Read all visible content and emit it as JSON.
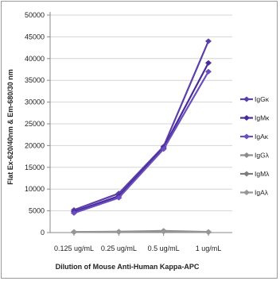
{
  "chart_data": {
    "type": "line",
    "xlabel": "Dilution of Mouse Anti-Human Kappa-APC",
    "ylabel": "Flat Ex-620/40nm & Em-680/30 nm",
    "categories": [
      "0.125 ug/mL",
      "0.25 ug/mL",
      "0.5 ug/mL",
      "1 ug/mL"
    ],
    "ylim": [
      0,
      50000
    ],
    "yticks": [
      0,
      5000,
      10000,
      15000,
      20000,
      25000,
      30000,
      35000,
      40000,
      45000,
      50000
    ],
    "grid": true,
    "legend_position": "right",
    "series": [
      {
        "name": "IgGκ",
        "color": "#5b3fa8",
        "values": [
          5200,
          9000,
          19800,
          44000
        ]
      },
      {
        "name": "IgMκ",
        "color": "#4a2a9a",
        "values": [
          4800,
          8400,
          19500,
          39000
        ]
      },
      {
        "name": "IgAκ",
        "color": "#6a4dbf",
        "values": [
          4500,
          8000,
          19200,
          37000
        ]
      },
      {
        "name": "IgGλ",
        "color": "#8c8c8c",
        "values": [
          150,
          200,
          400,
          150
        ]
      },
      {
        "name": "IgMλ",
        "color": "#7d7d7d",
        "values": [
          100,
          150,
          300,
          100
        ]
      },
      {
        "name": "IgAλ",
        "color": "#969696",
        "values": [
          120,
          180,
          250,
          120
        ]
      }
    ]
  }
}
